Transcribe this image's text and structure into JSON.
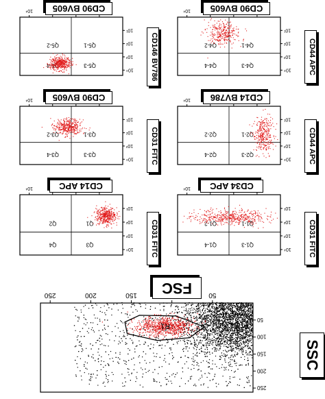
{
  "chart_data": [
    {
      "type": "scatter",
      "id": "fsc_ssc",
      "xlabel": "FSC",
      "ylabel": "SSC",
      "x_ticks": [
        "50",
        "100",
        "150",
        "200",
        "250"
      ],
      "y_ticks": [
        "50",
        "100",
        "150",
        "200",
        "250"
      ],
      "xlim": [
        0,
        262
      ],
      "ylim": [
        0,
        262
      ],
      "gate_label": "R1",
      "gate_vertices": [
        [
          60,
          70
        ],
        [
          95,
          38
        ],
        [
          140,
          36
        ],
        [
          158,
          56
        ],
        [
          155,
          90
        ],
        [
          118,
          110
        ],
        [
          78,
          102
        ]
      ],
      "series": [
        {
          "color": "#000000",
          "n": 4200,
          "center": [
            28,
            60
          ],
          "spread": [
            30,
            50
          ]
        },
        {
          "color": "#e11b1b",
          "n": 700,
          "center": [
            108,
            70
          ],
          "spread": [
            18,
            14
          ]
        }
      ]
    },
    {
      "type": "scatter",
      "id": "cd34_cd31",
      "xlabel": "CD34 APC",
      "ylabel": "CD31 FITC",
      "x_ticks": [
        "10¹",
        "10²",
        "10³",
        "10⁴"
      ],
      "y_ticks": [
        "10¹",
        "10²",
        "10³",
        "10⁴"
      ],
      "quadrants": [
        "Q1-1",
        "Q1-2",
        "Q1-3",
        "Q1-4"
      ],
      "series": [
        {
          "color": "#e11b1b",
          "n": 480,
          "center": [
            0.46,
            0.38
          ],
          "spread": [
            0.2,
            0.06
          ]
        }
      ]
    },
    {
      "type": "scatter",
      "id": "cd14_cd31",
      "xlabel": "CD14 APC",
      "ylabel": "CD31 FITC",
      "x_ticks": [
        "10¹",
        "10²",
        "10³",
        "10⁴"
      ],
      "y_ticks": [
        "10¹",
        "10²",
        "10³",
        "10⁴"
      ],
      "quadrants": [
        "Q1",
        "Q2",
        "Q3",
        "Q4"
      ],
      "series": [
        {
          "color": "#e11b1b",
          "n": 420,
          "center": [
            0.16,
            0.36
          ],
          "spread": [
            0.05,
            0.07
          ]
        }
      ]
    },
    {
      "type": "scatter",
      "id": "cd90_cd31",
      "xlabel": "CD90 BV605",
      "ylabel": "CD31 FITC",
      "x_ticks": [
        "10¹",
        "10²",
        "10³",
        "10⁴"
      ],
      "y_ticks": [
        "10¹",
        "10²",
        "10³",
        "10⁴"
      ],
      "quadrants": [
        "Q3-1",
        "Q3-2",
        "Q3-3",
        "Q3-4"
      ],
      "series": [
        {
          "color": "#e11b1b",
          "n": 380,
          "center": [
            0.53,
            0.36
          ],
          "spread": [
            0.07,
            0.07
          ]
        }
      ]
    },
    {
      "type": "scatter",
      "id": "cd14_cd44",
      "xlabel": "CD14 BV786",
      "ylabel": "CD44 APC",
      "x_ticks": [
        "10¹",
        "10²",
        "10³",
        "10⁴"
      ],
      "y_ticks": [
        "10¹",
        "10²",
        "10³",
        "10⁴"
      ],
      "quadrants": [
        "Q2-1",
        "Q2-2",
        "Q2-3",
        "Q2-4"
      ],
      "series": [
        {
          "color": "#e11b1b",
          "n": 320,
          "center": [
            0.16,
            0.5
          ],
          "spread": [
            0.05,
            0.15
          ]
        }
      ]
    },
    {
      "type": "scatter",
      "id": "cd90_cd146",
      "xlabel": "CD90 BV605",
      "ylabel": "CD146 BV786",
      "x_ticks": [
        "10¹",
        "10²",
        "10³",
        "10⁴"
      ],
      "y_ticks": [
        "10¹",
        "10²",
        "10³",
        "10⁴"
      ],
      "quadrants": [
        "Q5-1",
        "Q5-2",
        "Q5-3",
        "Q5-4"
      ],
      "series": [
        {
          "color": "#e11b1b",
          "n": 420,
          "center": [
            0.6,
            0.8
          ],
          "spread": [
            0.05,
            0.06
          ]
        }
      ]
    },
    {
      "type": "scatter",
      "id": "cd90_cd44",
      "xlabel": "CD90 BV605",
      "ylabel": "CD44 APC",
      "x_ticks": [
        "10¹",
        "10²",
        "10³",
        "10⁴"
      ],
      "y_ticks": [
        "10¹",
        "10²",
        "10³",
        "10⁴"
      ],
      "quadrants": [
        "Q4-1",
        "Q4-2",
        "Q4-3",
        "Q4-4"
      ],
      "series": [
        {
          "color": "#e11b1b",
          "n": 300,
          "center": [
            0.55,
            0.28
          ],
          "spread": [
            0.08,
            0.1
          ]
        }
      ]
    }
  ]
}
